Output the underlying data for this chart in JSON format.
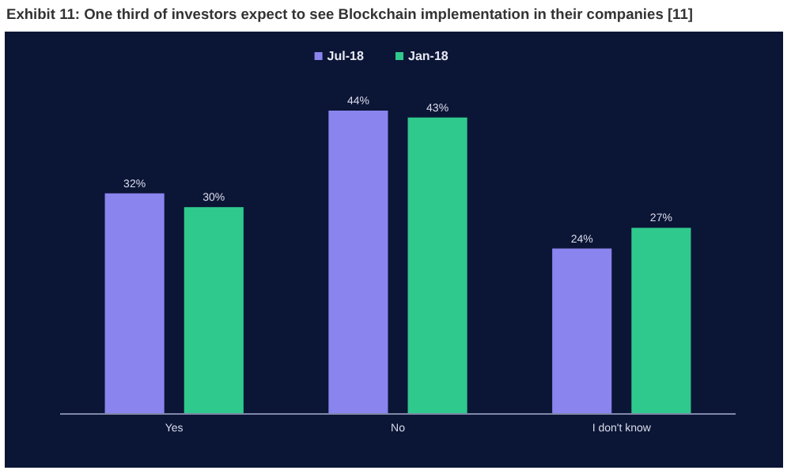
{
  "chart_data": {
    "type": "bar",
    "title": "Exhibit 11: One third of investors expect to see Blockchain implementation in their companies [11]",
    "categories": [
      "Yes",
      "No",
      "I don't know"
    ],
    "series": [
      {
        "name": "Jul-18",
        "color": "#8a84ee",
        "values": [
          32,
          44,
          24
        ],
        "value_labels": [
          "32%",
          "44%",
          "24%"
        ]
      },
      {
        "name": "Jan-18",
        "color": "#2fc98e",
        "values": [
          30,
          43,
          27
        ],
        "value_labels": [
          "30%",
          "43%",
          "27%"
        ]
      }
    ],
    "legend": "top"
  }
}
